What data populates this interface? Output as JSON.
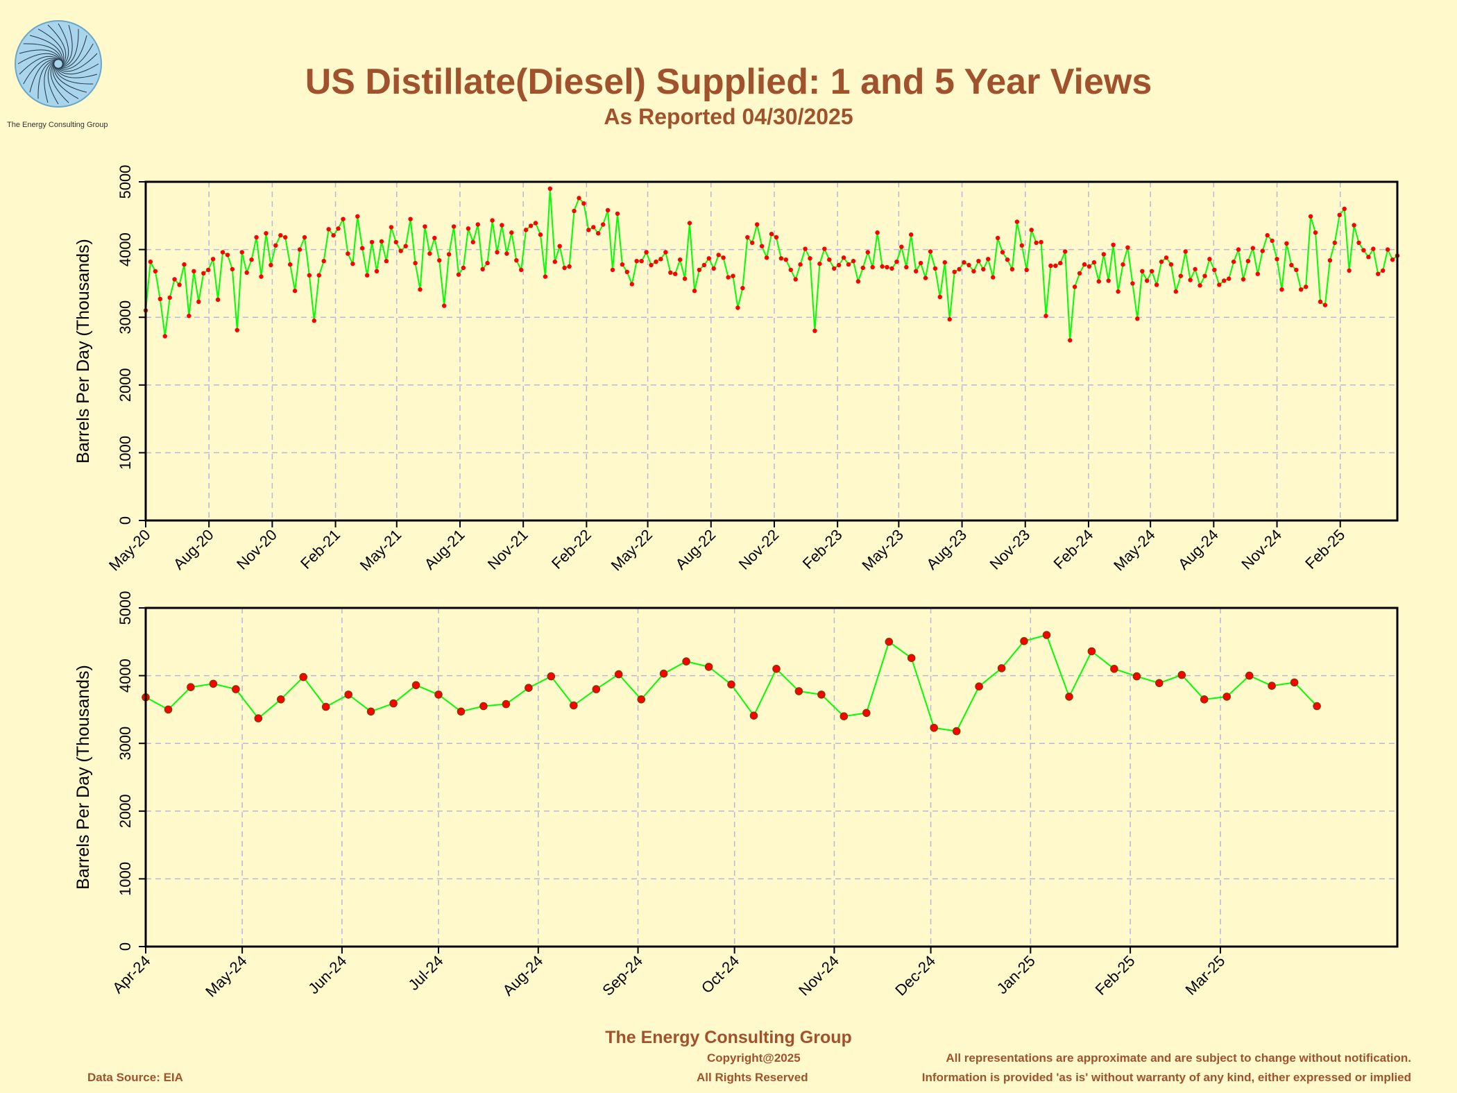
{
  "header": {
    "title": "US Distillate(Diesel) Supplied: 1 and 5 Year Views",
    "subtitle": "As Reported 04/30/2025",
    "logo_text": "The Energy Consulting Group"
  },
  "footer": {
    "org": "The Energy Consulting Group",
    "copyright": "Copyright@2025",
    "rights": "All Rights Reserved",
    "data_source": "Data Source: EIA",
    "disclaimer1": "All representations are approximate and are subject to change without notification.",
    "disclaimer2": "Information is provided 'as is' without warranty of any kind, either expressed or implied"
  },
  "colors": {
    "background": "#fff9cc",
    "line": "#00ff00",
    "marker": "#ff0000",
    "text": "#a0522d",
    "grid": "#b8b8d8"
  },
  "chart_data": [
    {
      "type": "line",
      "ylabel": "Barrels Per Day (Thousands)",
      "ylim": [
        0,
        5000
      ],
      "yticks": [
        0,
        1000,
        2000,
        3000,
        4000,
        5000
      ],
      "xlim": [
        "2020-05-01",
        "2025-04-25"
      ],
      "xticks": [
        {
          "label": "May-20",
          "date": "2020-05-01"
        },
        {
          "label": "Aug-20",
          "date": "2020-08-01"
        },
        {
          "label": "Nov-20",
          "date": "2020-11-01"
        },
        {
          "label": "Feb-21",
          "date": "2021-02-01"
        },
        {
          "label": "May-21",
          "date": "2021-05-01"
        },
        {
          "label": "Aug-21",
          "date": "2021-08-01"
        },
        {
          "label": "Nov-21",
          "date": "2021-11-01"
        },
        {
          "label": "Feb-22",
          "date": "2022-02-01"
        },
        {
          "label": "May-22",
          "date": "2022-05-01"
        },
        {
          "label": "Aug-22",
          "date": "2022-08-01"
        },
        {
          "label": "Nov-22",
          "date": "2022-11-01"
        },
        {
          "label": "Feb-23",
          "date": "2023-02-01"
        },
        {
          "label": "May-23",
          "date": "2023-05-01"
        },
        {
          "label": "Aug-23",
          "date": "2023-08-01"
        },
        {
          "label": "Nov-23",
          "date": "2023-11-01"
        },
        {
          "label": "Feb-24",
          "date": "2024-02-01"
        },
        {
          "label": "May-24",
          "date": "2024-05-01"
        },
        {
          "label": "Aug-24",
          "date": "2024-08-01"
        },
        {
          "label": "Nov-24",
          "date": "2024-11-01"
        },
        {
          "label": "Feb-25",
          "date": "2025-02-01"
        }
      ],
      "grid": true,
      "series": [
        {
          "start_date": "2020-05-01",
          "interval_days": 7,
          "values": [
            3100,
            3820,
            3680,
            3270,
            2720,
            3290,
            3560,
            3480,
            3780,
            3020,
            3680,
            3230,
            3650,
            3700,
            3860,
            3260,
            3960,
            3920,
            3710,
            2810,
            3960,
            3660,
            3850,
            4180,
            3600,
            4240,
            3770,
            4060,
            4210,
            4180,
            3780,
            3390,
            4000,
            4180,
            3620,
            2950,
            3620,
            3830,
            4300,
            4210,
            4310,
            4450,
            3940,
            3790,
            4490,
            4020,
            3620,
            4110,
            3680,
            4120,
            3830,
            4330,
            4110,
            3980,
            4050,
            4450,
            3800,
            3410,
            4340,
            3940,
            4170,
            3840,
            3170,
            3930,
            4340,
            3630,
            3730,
            4310,
            4110,
            4370,
            3710,
            3800,
            4430,
            3960,
            4360,
            3940,
            4250,
            3840,
            3700,
            4290,
            4350,
            4390,
            4220,
            3600,
            4900,
            3820,
            4050,
            3730,
            3750,
            4570,
            4760,
            4680,
            4290,
            4330,
            4240,
            4370,
            4580,
            3700,
            4530,
            3780,
            3670,
            3490,
            3830,
            3830,
            3960,
            3770,
            3820,
            3860,
            3960,
            3660,
            3640,
            3850,
            3570,
            4390,
            3390,
            3700,
            3770,
            3870,
            3720,
            3920,
            3880,
            3590,
            3610,
            3140,
            3430,
            4180,
            4100,
            4370,
            4050,
            3880,
            4230,
            4180,
            3870,
            3850,
            3700,
            3560,
            3780,
            4010,
            3870,
            2800,
            3790,
            4010,
            3850,
            3720,
            3770,
            3880,
            3780,
            3830,
            3530,
            3730,
            3960,
            3740,
            4250,
            3750,
            3740,
            3720,
            3820,
            4040,
            3740,
            4220,
            3680,
            3800,
            3580,
            3970,
            3720,
            3300,
            3810,
            2970,
            3670,
            3710,
            3810,
            3770,
            3680,
            3830,
            3710,
            3860,
            3590,
            4170,
            3960,
            3850,
            3710,
            4410,
            4060,
            3700,
            4290,
            4100,
            4110,
            3020,
            3760,
            3760,
            3800,
            3970,
            2660,
            3450,
            3650,
            3780,
            3750,
            3810,
            3530,
            3930,
            3540,
            4070,
            3380,
            3780,
            4030,
            3500,
            2980,
            3680,
            3540,
            3680,
            3480,
            3820,
            3880,
            3780,
            3380,
            3610,
            3970,
            3550,
            3710,
            3470,
            3610,
            3860,
            3700,
            3480,
            3540,
            3570,
            3820,
            4000,
            3560,
            3830,
            4020,
            3640,
            3980,
            4210,
            4130,
            3860,
            3410,
            4090,
            3770,
            3700,
            3410,
            3450,
            4490,
            4250,
            3230,
            3180,
            3840,
            4100,
            4510,
            4600,
            3690,
            4360,
            4100,
            3990,
            3890,
            4010,
            3640,
            3690,
            4000,
            3850,
            3910,
            3550
          ]
        }
      ]
    },
    {
      "type": "line",
      "ylabel": "Barrels Per Day (Thousands)",
      "ylim": [
        0,
        5000
      ],
      "yticks": [
        0,
        1000,
        2000,
        3000,
        4000,
        5000
      ],
      "xlim": [
        "2024-04-01",
        "2025-04-25"
      ],
      "xticks": [
        {
          "label": "Apr-24",
          "date": "2024-04-01"
        },
        {
          "label": "May-24",
          "date": "2024-05-01"
        },
        {
          "label": "Jun-24",
          "date": "2024-06-01"
        },
        {
          "label": "Jul-24",
          "date": "2024-07-01"
        },
        {
          "label": "Aug-24",
          "date": "2024-08-01"
        },
        {
          "label": "Sep-24",
          "date": "2024-09-01"
        },
        {
          "label": "Oct-24",
          "date": "2024-10-01"
        },
        {
          "label": "Nov-24",
          "date": "2024-11-01"
        },
        {
          "label": "Dec-24",
          "date": "2024-12-01"
        },
        {
          "label": "Jan-25",
          "date": "2025-01-01"
        },
        {
          "label": "Feb-25",
          "date": "2025-02-01"
        },
        {
          "label": "Mar-25",
          "date": "2025-03-01"
        }
      ],
      "grid": true,
      "series": [
        {
          "start_date": "2024-04-01",
          "interval_days": 7,
          "values": [
            3680,
            3500,
            3830,
            3880,
            3800,
            3370,
            3650,
            3980,
            3540,
            3720,
            3470,
            3590,
            3860,
            3720,
            3470,
            3550,
            3580,
            3820,
            3990,
            3560,
            3800,
            4020,
            3650,
            4030,
            4210,
            4130,
            3870,
            3410,
            4100,
            3770,
            3720,
            3400,
            3450,
            4500,
            4260,
            3230,
            3180,
            3840,
            4110,
            4510,
            4600,
            3690,
            4360,
            4100,
            3990,
            3890,
            4010,
            3650,
            3690,
            4000,
            3850,
            3900,
            3550
          ]
        }
      ]
    }
  ]
}
